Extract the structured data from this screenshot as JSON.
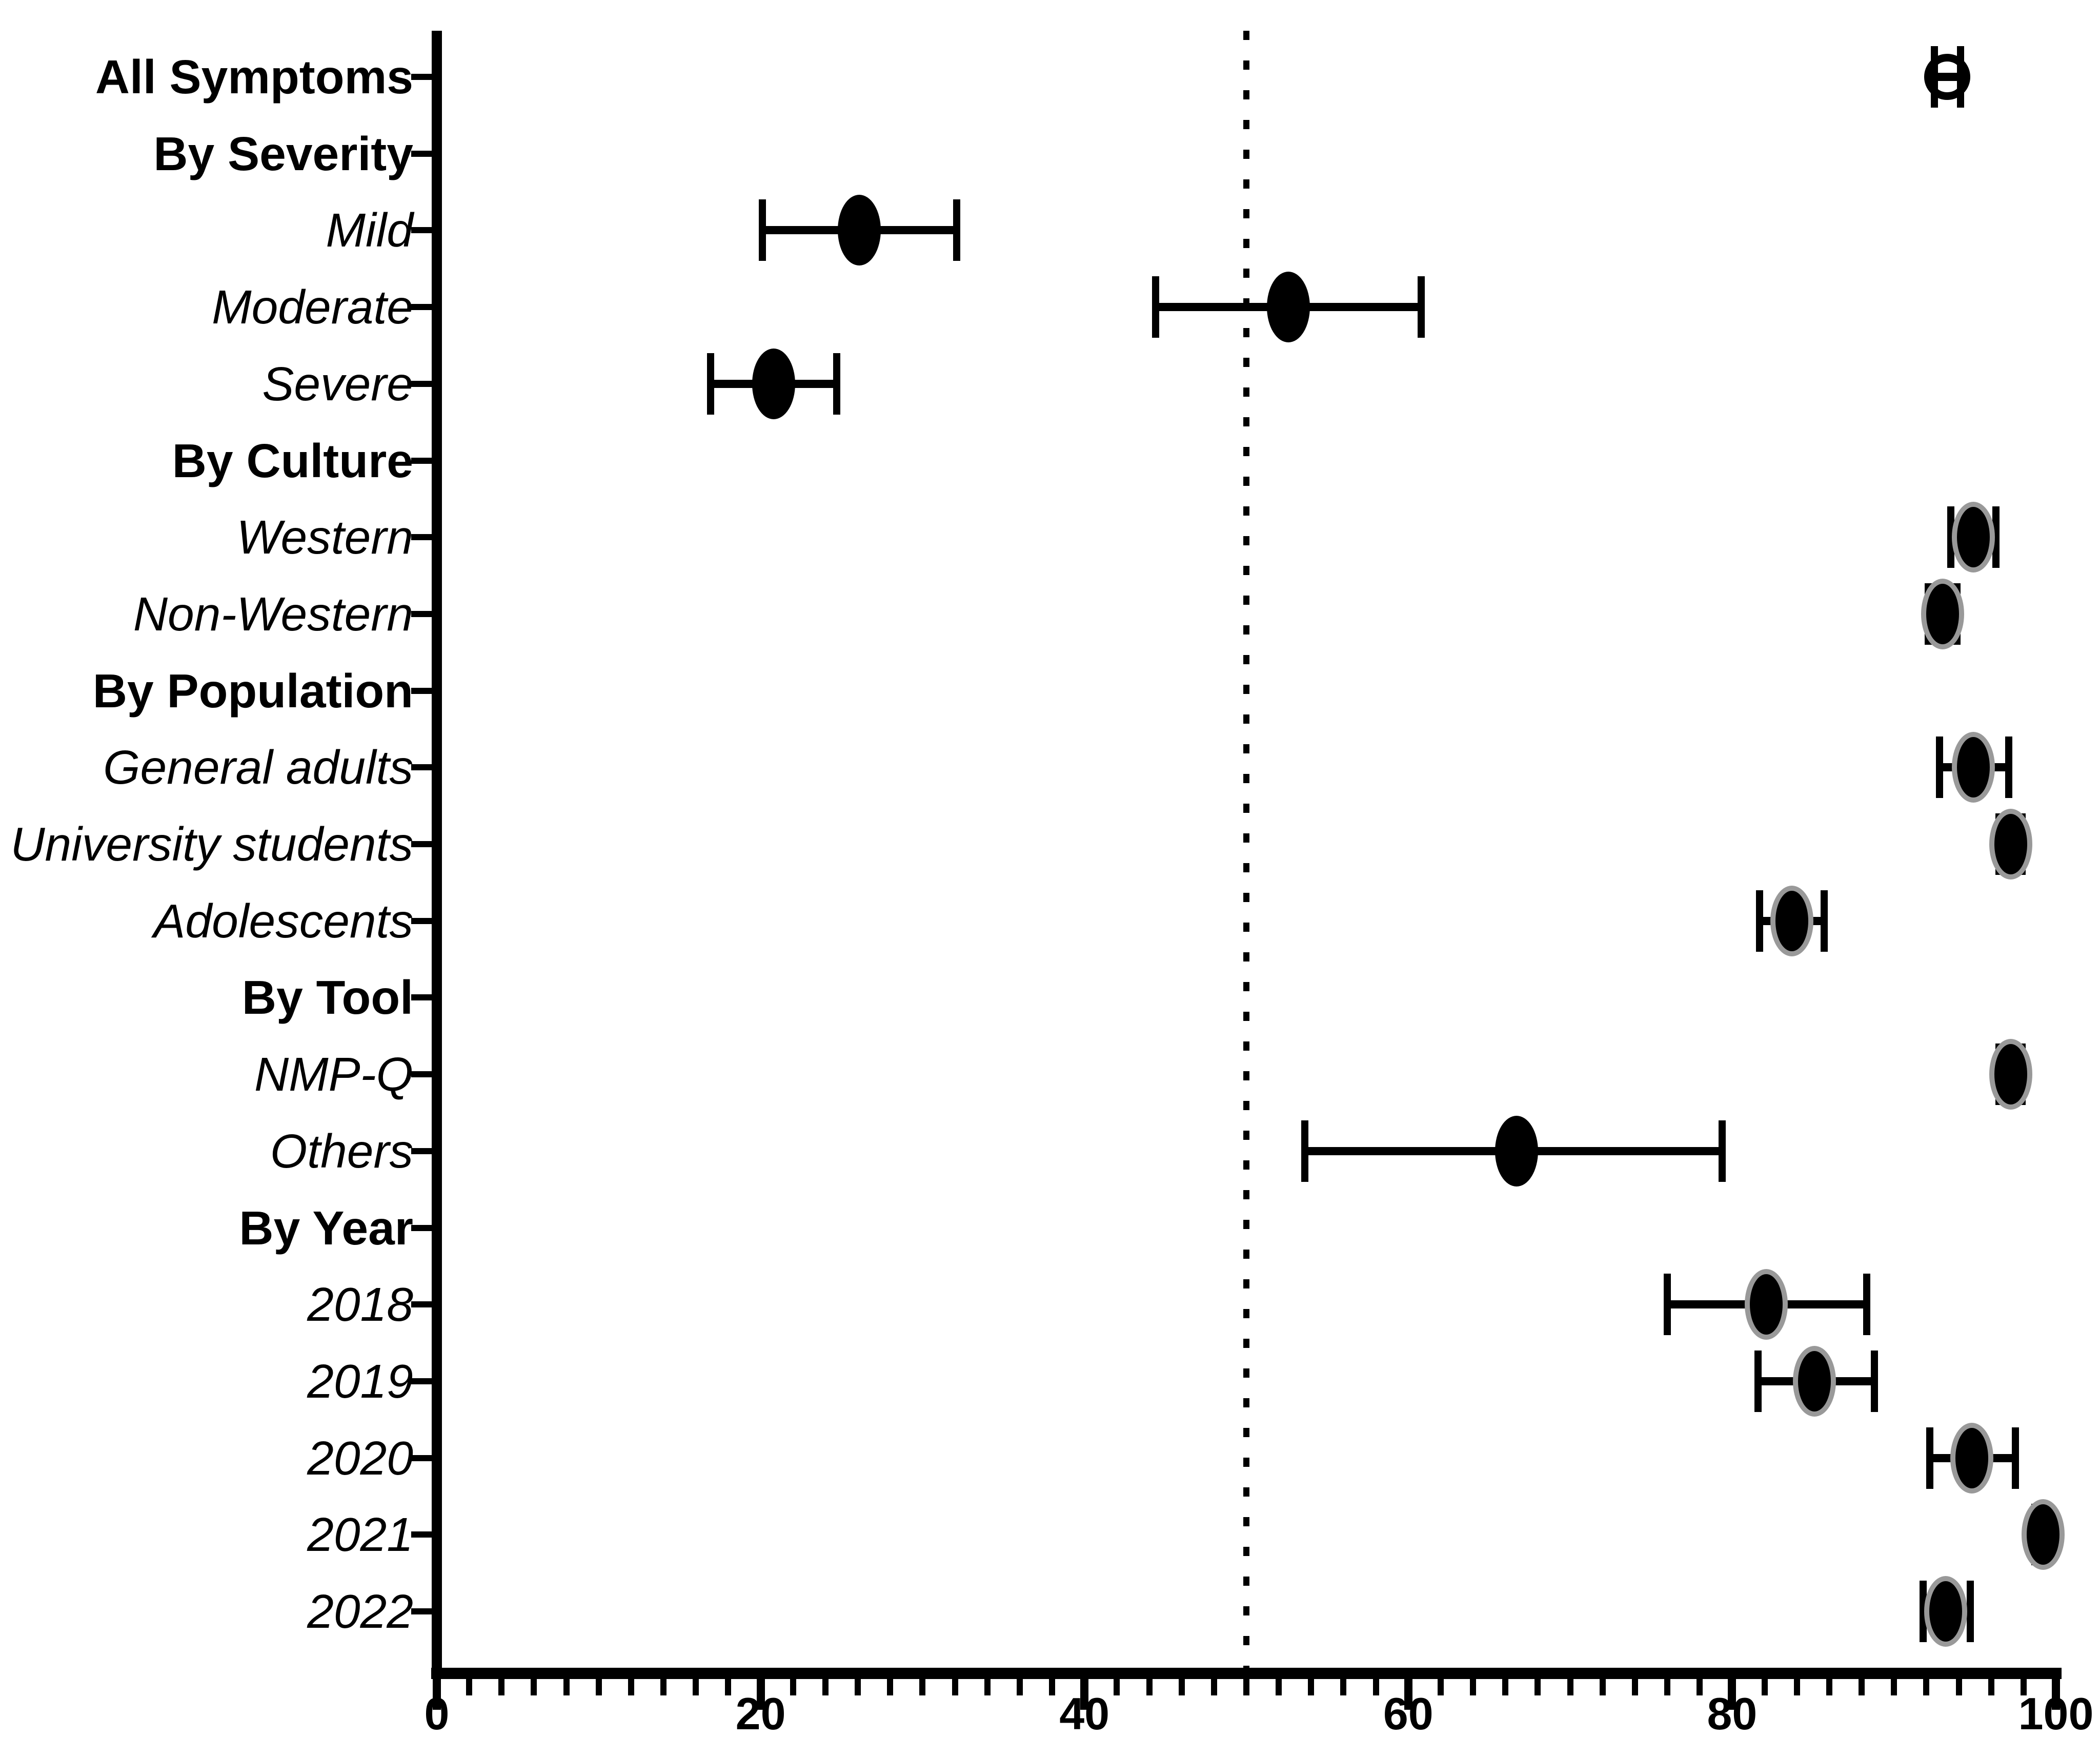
{
  "figure": {
    "background_color": "#ffffff",
    "ink_color": "#000000",
    "marker_rim_color": "#999999"
  },
  "chart_data": {
    "type": "scatter",
    "variant": "forest-plot-with-error-bars",
    "title": "",
    "xlabel": "",
    "ylabel": "",
    "xlim": [
      0,
      100
    ],
    "x_major_ticks": [
      0,
      20,
      40,
      60,
      80,
      100
    ],
    "x_major_tick_labels": [
      "0",
      "20",
      "40",
      "60",
      "80",
      "100"
    ],
    "x_minor_tick_step": 2,
    "reference_line_x": 50,
    "reference_line_style": "dotted",
    "grid": false,
    "legend": false,
    "rows": [
      {
        "label": "All Symptoms",
        "kind": "overall",
        "marker": "open-circle",
        "estimate": 93.3,
        "ci_low": 92.5,
        "ci_high": 94.1
      },
      {
        "label": "By Severity",
        "kind": "header"
      },
      {
        "label": "Mild",
        "kind": "subgroup",
        "marker": "filled-black",
        "estimate": 26.1,
        "ci_low": 20.1,
        "ci_high": 32.1
      },
      {
        "label": "Moderate",
        "kind": "subgroup",
        "marker": "filled-black",
        "estimate": 52.6,
        "ci_low": 44.4,
        "ci_high": 60.8
      },
      {
        "label": "Severe",
        "kind": "subgroup",
        "marker": "filled-black",
        "estimate": 20.8,
        "ci_low": 16.9,
        "ci_high": 24.7
      },
      {
        "label": "By Culture",
        "kind": "header"
      },
      {
        "label": "Western",
        "kind": "subgroup",
        "marker": "filled-gray-rim",
        "estimate": 94.9,
        "ci_low": 93.5,
        "ci_high": 96.3
      },
      {
        "label": "Non-Western",
        "kind": "subgroup",
        "marker": "filled-gray-rim",
        "estimate": 93.0,
        "ci_low": 92.1,
        "ci_high": 93.9
      },
      {
        "label": "By Population",
        "kind": "header"
      },
      {
        "label": "General adults",
        "kind": "subgroup",
        "marker": "filled-gray-rim",
        "estimate": 94.9,
        "ci_low": 92.8,
        "ci_high": 97.1
      },
      {
        "label": "University students",
        "kind": "subgroup",
        "marker": "filled-gray-rim",
        "estimate": 97.2,
        "ci_low": 96.5,
        "ci_high": 97.9
      },
      {
        "label": "Adolescents",
        "kind": "subgroup",
        "marker": "filled-gray-rim",
        "estimate": 83.7,
        "ci_low": 81.7,
        "ci_high": 85.7
      },
      {
        "label": "By Tool",
        "kind": "header"
      },
      {
        "label": "NMP-Q",
        "kind": "subgroup",
        "marker": "filled-gray-rim",
        "estimate": 97.2,
        "ci_low": 96.5,
        "ci_high": 97.9
      },
      {
        "label": "Others",
        "kind": "subgroup",
        "marker": "filled-black",
        "estimate": 66.7,
        "ci_low": 53.6,
        "ci_high": 79.4
      },
      {
        "label": "By Year",
        "kind": "header"
      },
      {
        "label": "2018",
        "kind": "subgroup",
        "marker": "filled-gray-rim",
        "estimate": 82.1,
        "ci_low": 76.0,
        "ci_high": 88.3
      },
      {
        "label": "2019",
        "kind": "subgroup",
        "marker": "filled-gray-rim",
        "estimate": 85.1,
        "ci_low": 81.6,
        "ci_high": 88.8
      },
      {
        "label": "2020",
        "kind": "subgroup",
        "marker": "filled-gray-rim",
        "estimate": 94.8,
        "ci_low": 92.2,
        "ci_high": 97.5
      },
      {
        "label": "2021",
        "kind": "subgroup",
        "marker": "filled-gray-rim",
        "estimate": 99.2,
        "ci_low": 98.7,
        "ci_high": 99.6
      },
      {
        "label": "2022",
        "kind": "subgroup",
        "marker": "filled-gray-rim",
        "estimate": 93.2,
        "ci_low": 91.8,
        "ci_high": 94.7
      }
    ]
  }
}
